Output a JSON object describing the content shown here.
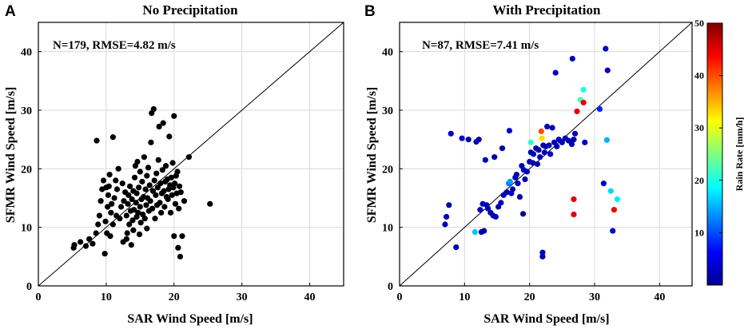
{
  "chart_data": [
    {
      "type": "scatter",
      "panel_label": "A",
      "title": "No Precipitation",
      "xlabel": "SAR Wind Speed [m/s]",
      "ylabel": "SFMR Wind Speed [m/s]",
      "xlim": [
        0,
        45
      ],
      "ylim": [
        0,
        45
      ],
      "xticks": [
        "0",
        "10",
        "20",
        "30",
        "40"
      ],
      "yticks": [
        "0",
        "10",
        "20",
        "30",
        "40"
      ],
      "grid": true,
      "reference_line": "1:1",
      "annotation": "N=179, RMSE=4.82 m/s",
      "marker_color": "#000000",
      "points": [
        [
          5.2,
          6.5
        ],
        [
          5.3,
          7.0
        ],
        [
          6.2,
          7.5
        ],
        [
          7.0,
          6.8
        ],
        [
          7.5,
          8.0
        ],
        [
          8.0,
          7.2
        ],
        [
          8.5,
          9.0
        ],
        [
          8.6,
          24.8
        ],
        [
          8.8,
          10.5
        ],
        [
          9.0,
          12.0
        ],
        [
          9.2,
          14.5
        ],
        [
          9.4,
          16.5
        ],
        [
          9.6,
          18.0
        ],
        [
          9.8,
          5.5
        ],
        [
          9.9,
          11.0
        ],
        [
          10.0,
          16.8
        ],
        [
          10.1,
          9.0
        ],
        [
          10.2,
          13.5
        ],
        [
          10.3,
          15.5
        ],
        [
          10.4,
          17.0
        ],
        [
          10.5,
          19.0
        ],
        [
          10.6,
          8.5
        ],
        [
          10.7,
          12.5
        ],
        [
          10.8,
          14.0
        ],
        [
          11.0,
          10.5
        ],
        [
          11.0,
          25.4
        ],
        [
          11.2,
          15.0
        ],
        [
          11.4,
          18.0
        ],
        [
          11.5,
          12.0
        ],
        [
          11.6,
          16.5
        ],
        [
          11.8,
          20.0
        ],
        [
          12.0,
          11.5
        ],
        [
          12.2,
          13.5
        ],
        [
          12.4,
          17.5
        ],
        [
          12.5,
          7.5
        ],
        [
          12.6,
          14.5
        ],
        [
          12.8,
          16.0
        ],
        [
          13.0,
          8.0
        ],
        [
          13.0,
          12.0
        ],
        [
          13.1,
          9.0
        ],
        [
          13.2,
          14.0
        ],
        [
          13.3,
          15.5
        ],
        [
          13.4,
          10.5
        ],
        [
          13.5,
          17.0
        ],
        [
          13.6,
          12.8
        ],
        [
          13.7,
          7.0
        ],
        [
          13.8,
          14.8
        ],
        [
          13.9,
          11.2
        ],
        [
          14.0,
          16.2
        ],
        [
          14.0,
          9.5
        ],
        [
          14.1,
          13.0
        ],
        [
          14.2,
          18.5
        ],
        [
          14.3,
          20.5
        ],
        [
          14.4,
          14.2
        ],
        [
          14.5,
          11.8
        ],
        [
          14.5,
          15.8
        ],
        [
          14.6,
          21.2
        ],
        [
          14.7,
          12.5
        ],
        [
          14.8,
          16.8
        ],
        [
          14.9,
          8.8
        ],
        [
          15.0,
          13.5
        ],
        [
          15.0,
          19.5
        ],
        [
          15.1,
          10.8
        ],
        [
          15.2,
          14.8
        ],
        [
          15.3,
          17.8
        ],
        [
          15.4,
          12.2
        ],
        [
          15.5,
          15.2
        ],
        [
          15.6,
          22.0
        ],
        [
          15.7,
          11.5
        ],
        [
          15.8,
          16.5
        ],
        [
          15.9,
          13.8
        ],
        [
          16.0,
          18.8
        ],
        [
          16.0,
          9.8
        ],
        [
          16.1,
          15.0
        ],
        [
          16.2,
          20.2
        ],
        [
          16.3,
          12.8
        ],
        [
          16.4,
          17.2
        ],
        [
          16.5,
          14.5
        ],
        [
          16.6,
          24.5
        ],
        [
          16.7,
          29.5
        ],
        [
          16.8,
          13.2
        ],
        [
          16.9,
          16.2
        ],
        [
          17.0,
          30.2
        ],
        [
          17.1,
          18.0
        ],
        [
          17.2,
          11.5
        ],
        [
          17.3,
          15.5
        ],
        [
          17.4,
          19.2
        ],
        [
          17.5,
          13.8
        ],
        [
          17.6,
          16.8
        ],
        [
          17.7,
          21.5
        ],
        [
          17.8,
          27.2
        ],
        [
          17.9,
          14.2
        ],
        [
          18.0,
          17.5
        ],
        [
          18.1,
          12.5
        ],
        [
          18.2,
          15.8
        ],
        [
          18.3,
          19.8
        ],
        [
          18.4,
          27.8
        ],
        [
          18.5,
          16.2
        ],
        [
          18.6,
          13.5
        ],
        [
          18.7,
          17.8
        ],
        [
          18.8,
          20.5
        ],
        [
          18.9,
          15.2
        ],
        [
          19.0,
          18.2
        ],
        [
          19.1,
          14.8
        ],
        [
          19.2,
          16.5
        ],
        [
          19.3,
          25.5
        ],
        [
          19.4,
          17.2
        ],
        [
          19.5,
          12.5
        ],
        [
          19.6,
          18.5
        ],
        [
          19.7,
          15.5
        ],
        [
          19.8,
          21.0
        ],
        [
          19.9,
          16.8
        ],
        [
          20.0,
          29.0
        ],
        [
          20.0,
          8.5
        ],
        [
          20.1,
          17.5
        ],
        [
          20.2,
          14.0
        ],
        [
          20.3,
          18.8
        ],
        [
          20.4,
          15.8
        ],
        [
          20.5,
          19.5
        ],
        [
          20.6,
          6.5
        ],
        [
          20.7,
          13.2
        ],
        [
          20.8,
          17.0
        ],
        [
          20.9,
          5.0
        ],
        [
          21.0,
          16.0
        ],
        [
          21.2,
          8.5
        ],
        [
          21.5,
          14.5
        ],
        [
          22.2,
          22.0
        ],
        [
          25.3,
          14.0
        ]
      ]
    },
    {
      "type": "scatter",
      "panel_label": "B",
      "title": "With Precipitation",
      "xlabel": "SAR Wind Speed [m/s]",
      "ylabel": "SFMR Wind Speed [m/s]",
      "xlim": [
        0,
        45
      ],
      "ylim": [
        0,
        45
      ],
      "xticks": [
        "0",
        "10",
        "20",
        "30",
        "40"
      ],
      "yticks": [
        "0",
        "10",
        "20",
        "30",
        "40"
      ],
      "grid": true,
      "reference_line": "1:1",
      "annotation": "N=87, RMSE=7.41 m/s",
      "color_by": "rain_rate",
      "colorbar": {
        "label": "Rain Rate [mm/h]",
        "range": [
          0,
          50
        ],
        "ticks": [
          "10",
          "20",
          "30",
          "40",
          "50"
        ],
        "colormap": "jet"
      },
      "points": [
        [
          7.0,
          10.5,
          2
        ],
        [
          7.2,
          11.8,
          3
        ],
        [
          7.6,
          13.8,
          2
        ],
        [
          7.9,
          26.0,
          3
        ],
        [
          8.7,
          6.6,
          2
        ],
        [
          9.6,
          25.2,
          3
        ],
        [
          10.6,
          25.0,
          2
        ],
        [
          11.6,
          9.2,
          16
        ],
        [
          11.8,
          24.6,
          3
        ],
        [
          12.2,
          25.0,
          2
        ],
        [
          12.4,
          13.0,
          3
        ],
        [
          12.6,
          9.2,
          2
        ],
        [
          12.8,
          14.0,
          3
        ],
        [
          13.0,
          9.4,
          2
        ],
        [
          13.2,
          21.5,
          3
        ],
        [
          13.4,
          13.8,
          2
        ],
        [
          13.6,
          13.2,
          3
        ],
        [
          14.0,
          12.5,
          2
        ],
        [
          14.4,
          12.0,
          3
        ],
        [
          14.6,
          22.0,
          2
        ],
        [
          14.8,
          11.8,
          3
        ],
        [
          15.2,
          13.5,
          2
        ],
        [
          15.6,
          14.2,
          3
        ],
        [
          15.8,
          23.5,
          2
        ],
        [
          16.0,
          15.5,
          3
        ],
        [
          16.5,
          16.0,
          2
        ],
        [
          16.8,
          17.5,
          12
        ],
        [
          16.9,
          26.5,
          3
        ],
        [
          17.0,
          17.8,
          14
        ],
        [
          17.2,
          15.8,
          3
        ],
        [
          17.4,
          16.5,
          2
        ],
        [
          17.8,
          18.5,
          3
        ],
        [
          18.0,
          19.0,
          2
        ],
        [
          18.2,
          17.5,
          3
        ],
        [
          18.5,
          15.2,
          2
        ],
        [
          18.8,
          20.5,
          3
        ],
        [
          19.0,
          12.3,
          2
        ],
        [
          19.1,
          19.8,
          3
        ],
        [
          19.3,
          18.2,
          2
        ],
        [
          19.6,
          19.5,
          3
        ],
        [
          20.0,
          21.2,
          2
        ],
        [
          20.2,
          22.8,
          3
        ],
        [
          20.2,
          24.5,
          21
        ],
        [
          20.5,
          21.0,
          2
        ],
        [
          20.6,
          22.5,
          3
        ],
        [
          21.0,
          23.5,
          2
        ],
        [
          21.2,
          20.8,
          3
        ],
        [
          21.4,
          23.2,
          2
        ],
        [
          21.6,
          22.0,
          3
        ],
        [
          21.8,
          26.4,
          40
        ],
        [
          21.9,
          25.2,
          33
        ],
        [
          22.0,
          5.7,
          3
        ],
        [
          22.0,
          5.0,
          2
        ],
        [
          22.1,
          24.0,
          2
        ],
        [
          22.3,
          22.8,
          3
        ],
        [
          22.5,
          23.8,
          2
        ],
        [
          22.7,
          27.2,
          3
        ],
        [
          23.0,
          24.0,
          2
        ],
        [
          23.2,
          22.5,
          3
        ],
        [
          23.5,
          27.0,
          2
        ],
        [
          23.8,
          24.5,
          3
        ],
        [
          24.0,
          36.4,
          3
        ],
        [
          24.2,
          23.8,
          2
        ],
        [
          24.5,
          25.0,
          3
        ],
        [
          25.0,
          24.5,
          2
        ],
        [
          25.5,
          25.2,
          3
        ],
        [
          26.0,
          24.8,
          2
        ],
        [
          26.5,
          24.2,
          3
        ],
        [
          26.6,
          38.8,
          3
        ],
        [
          26.8,
          25.0,
          2
        ],
        [
          27.0,
          26.0,
          3
        ],
        [
          26.8,
          12.2,
          45
        ],
        [
          26.8,
          14.8,
          45
        ],
        [
          27.3,
          29.8,
          45
        ],
        [
          27.8,
          31.8,
          22
        ],
        [
          28.3,
          31.3,
          45
        ],
        [
          28.3,
          33.5,
          20
        ],
        [
          28.5,
          24.5,
          3
        ],
        [
          30.8,
          30.2,
          8
        ],
        [
          31.4,
          17.5,
          3
        ],
        [
          31.7,
          40.5,
          3
        ],
        [
          31.9,
          24.9,
          15
        ],
        [
          32.0,
          36.8,
          3
        ],
        [
          32.5,
          16.2,
          17
        ],
        [
          32.8,
          9.4,
          3
        ],
        [
          33.0,
          13.0,
          44
        ],
        [
          33.5,
          14.8,
          18
        ]
      ]
    }
  ]
}
